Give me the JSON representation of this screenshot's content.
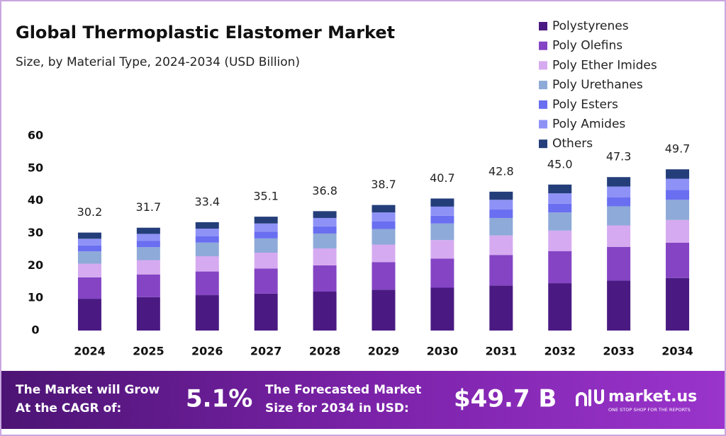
{
  "chart_data": {
    "type": "stacked-bar",
    "title": "Global Thermoplastic Elastomer Market",
    "subtitle": "Size, by Material Type, 2024-2034 (USD Billion)",
    "categories": [
      "2024",
      "2025",
      "2026",
      "2027",
      "2028",
      "2029",
      "2030",
      "2031",
      "2032",
      "2033",
      "2034"
    ],
    "series": [
      {
        "name": "Polystyrenes",
        "color": "#4a1a82",
        "values": [
          9.8,
          10.3,
          10.9,
          11.4,
          12.0,
          12.6,
          13.2,
          13.9,
          14.6,
          15.4,
          16.2
        ]
      },
      {
        "name": "Poly Olefins",
        "color": "#8444c4",
        "values": [
          6.6,
          7.0,
          7.3,
          7.7,
          8.1,
          8.5,
          9.0,
          9.4,
          9.9,
          10.4,
          10.9
        ]
      },
      {
        "name": "Poly Ether Imides",
        "color": "#d6aaf0",
        "values": [
          4.2,
          4.4,
          4.7,
          4.9,
          5.2,
          5.4,
          5.7,
          6.0,
          6.3,
          6.6,
          7.0
        ]
      },
      {
        "name": "Poly Urethanes",
        "color": "#8eaad8",
        "values": [
          3.8,
          4.0,
          4.2,
          4.4,
          4.6,
          4.8,
          5.1,
          5.4,
          5.6,
          5.9,
          6.2
        ]
      },
      {
        "name": "Poly Esters",
        "color": "#6a6ef0",
        "values": [
          1.8,
          1.9,
          2.0,
          2.1,
          2.2,
          2.3,
          2.4,
          2.6,
          2.7,
          2.8,
          3.0
        ]
      },
      {
        "name": "Poly Amides",
        "color": "#8e92f6",
        "values": [
          2.1,
          2.2,
          2.3,
          2.5,
          2.6,
          2.8,
          2.8,
          3.0,
          3.2,
          3.3,
          3.5
        ]
      },
      {
        "name": "Others",
        "color": "#243e7a",
        "values": [
          1.9,
          1.9,
          2.0,
          2.1,
          2.1,
          2.3,
          2.5,
          2.5,
          2.7,
          2.9,
          2.9
        ]
      }
    ],
    "totals": {
      "values": [
        30.2,
        31.7,
        33.4,
        35.1,
        36.8,
        38.7,
        40.7,
        42.8,
        45.0,
        47.3,
        49.7
      ],
      "value_labels": [
        "30.2",
        "31.7",
        "33.4",
        "35.1",
        "36.8",
        "38.7",
        "40.7",
        "42.8",
        "45.0",
        "47.3",
        "49.7"
      ]
    },
    "ylim": [
      0,
      60
    ],
    "yticks": [
      0,
      10,
      20,
      30,
      40,
      50,
      60
    ],
    "grid": false,
    "legend": "top-right"
  },
  "footer": {
    "cagr_text": [
      "The Market will Grow",
      "At the CAGR of:"
    ],
    "cagr_value": "5.1%",
    "forecast_text": [
      "The Forecasted Market",
      "Size for 2034 in USD:"
    ],
    "forecast_value": "$49.7 B",
    "brand": "market.us",
    "tagline": "ONE STOP SHOP FOR THE REPORTS"
  }
}
